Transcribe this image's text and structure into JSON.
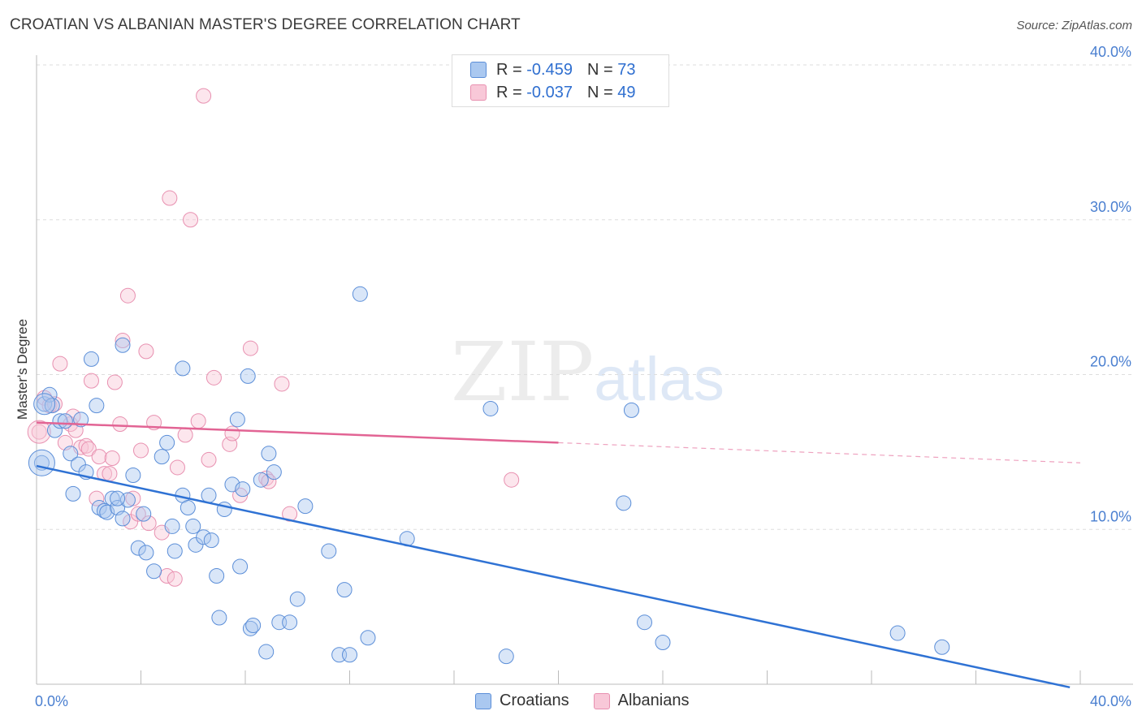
{
  "title": "CROATIAN VS ALBANIAN MASTER'S DEGREE CORRELATION CHART",
  "source": "Source: ZipAtlas.com",
  "watermark": {
    "zip": "ZIP",
    "atlas": "atlas"
  },
  "legend": {
    "rows": [
      {
        "r_label": "R = ",
        "r_value": "-0.459",
        "n_label": "N = ",
        "n_value": "73",
        "color": "#aac8f0",
        "border": "#5b8ed8"
      },
      {
        "r_label": "R = ",
        "r_value": "-0.037",
        "n_label": "N = ",
        "n_value": "49",
        "color": "#f8c8d8",
        "border": "#e890b0"
      }
    ]
  },
  "bottom_legend": [
    {
      "label": "Croatians",
      "color": "#aac8f0",
      "border": "#5b8ed8"
    },
    {
      "label": "Albanians",
      "color": "#f8c8d8",
      "border": "#e890b0"
    }
  ],
  "chart_data": {
    "type": "scatter",
    "title": "CROATIAN VS ALBANIAN MASTER'S DEGREE CORRELATION CHART",
    "xlabel": "",
    "ylabel": "Master's Degree",
    "xlim": [
      0,
      40
    ],
    "ylim": [
      0,
      40
    ],
    "x_tick_labels": [
      "0.0%",
      "40.0%"
    ],
    "y_ticks": [
      10,
      20,
      30,
      40
    ],
    "y_tick_labels": [
      "10.0%",
      "20.0%",
      "30.0%",
      "40.0%"
    ],
    "grid": true,
    "series": [
      {
        "name": "Croatians",
        "color": "#7aaae6",
        "line_color": "#2f72d4",
        "trend": {
          "x": [
            0,
            39.6
          ],
          "y": [
            14.1,
            -0.2
          ]
        },
        "points": [
          [
            0.2,
            14.3
          ],
          [
            0.3,
            18.1
          ],
          [
            0.5,
            18.7
          ],
          [
            0.6,
            18.0
          ],
          [
            0.7,
            16.4
          ],
          [
            0.9,
            17.0
          ],
          [
            1.1,
            17.0
          ],
          [
            1.3,
            14.9
          ],
          [
            1.4,
            12.3
          ],
          [
            1.6,
            14.2
          ],
          [
            1.7,
            17.1
          ],
          [
            1.9,
            13.7
          ],
          [
            2.1,
            21.0
          ],
          [
            2.3,
            18.0
          ],
          [
            2.4,
            11.4
          ],
          [
            2.6,
            11.2
          ],
          [
            2.7,
            11.1
          ],
          [
            2.9,
            12.0
          ],
          [
            3.1,
            11.4
          ],
          [
            3.3,
            10.7
          ],
          [
            3.5,
            11.9
          ],
          [
            3.7,
            13.5
          ],
          [
            3.9,
            8.8
          ],
          [
            4.1,
            11.0
          ],
          [
            4.2,
            8.5
          ],
          [
            4.5,
            7.3
          ],
          [
            4.8,
            14.7
          ],
          [
            5.0,
            15.6
          ],
          [
            5.2,
            10.2
          ],
          [
            5.3,
            8.6
          ],
          [
            5.6,
            12.2
          ],
          [
            5.8,
            11.4
          ],
          [
            6.0,
            10.2
          ],
          [
            6.1,
            9.0
          ],
          [
            6.4,
            9.5
          ],
          [
            6.6,
            12.2
          ],
          [
            6.7,
            9.3
          ],
          [
            6.9,
            7.0
          ],
          [
            7.0,
            4.3
          ],
          [
            7.2,
            11.3
          ],
          [
            7.5,
            12.9
          ],
          [
            7.7,
            17.1
          ],
          [
            7.8,
            7.6
          ],
          [
            7.9,
            12.6
          ],
          [
            8.1,
            19.9
          ],
          [
            8.2,
            3.6
          ],
          [
            8.3,
            3.8
          ],
          [
            8.6,
            13.2
          ],
          [
            8.8,
            2.1
          ],
          [
            8.9,
            14.9
          ],
          [
            9.1,
            13.7
          ],
          [
            9.3,
            4.0
          ],
          [
            9.7,
            4.0
          ],
          [
            10.0,
            5.5
          ],
          [
            10.3,
            11.5
          ],
          [
            11.2,
            8.6
          ],
          [
            11.6,
            1.9
          ],
          [
            11.8,
            6.1
          ],
          [
            12.0,
            1.9
          ],
          [
            12.4,
            25.2
          ],
          [
            12.7,
            3.0
          ],
          [
            3.3,
            21.9
          ],
          [
            5.6,
            20.4
          ],
          [
            14.2,
            9.4
          ],
          [
            17.4,
            17.8
          ],
          [
            18.0,
            1.8
          ],
          [
            22.5,
            11.7
          ],
          [
            22.8,
            17.7
          ],
          [
            23.3,
            4.0
          ],
          [
            24.0,
            2.7
          ],
          [
            33.0,
            3.3
          ],
          [
            34.7,
            2.4
          ],
          [
            3.1,
            12.0
          ]
        ]
      },
      {
        "name": "Albanians",
        "color": "#f4a6c2",
        "line_color": "#e26494",
        "trend": {
          "x": [
            0,
            20
          ],
          "y": [
            16.9,
            15.6
          ]
        },
        "trend_dashed": {
          "x": [
            20,
            40
          ],
          "y": [
            15.6,
            14.3
          ]
        },
        "points": [
          [
            0.1,
            16.3
          ],
          [
            0.3,
            18.5
          ],
          [
            0.5,
            18.0
          ],
          [
            0.7,
            18.1
          ],
          [
            0.9,
            20.7
          ],
          [
            1.1,
            15.6
          ],
          [
            1.3,
            16.8
          ],
          [
            1.4,
            17.3
          ],
          [
            1.5,
            16.4
          ],
          [
            1.7,
            15.3
          ],
          [
            1.9,
            15.4
          ],
          [
            2.0,
            15.2
          ],
          [
            2.1,
            19.6
          ],
          [
            2.3,
            12.0
          ],
          [
            2.4,
            14.7
          ],
          [
            2.6,
            13.6
          ],
          [
            2.8,
            13.6
          ],
          [
            2.9,
            14.6
          ],
          [
            3.0,
            19.5
          ],
          [
            3.2,
            16.8
          ],
          [
            3.3,
            22.2
          ],
          [
            3.5,
            25.1
          ],
          [
            3.6,
            10.5
          ],
          [
            3.7,
            12.0
          ],
          [
            3.9,
            11.0
          ],
          [
            4.0,
            15.1
          ],
          [
            4.2,
            21.5
          ],
          [
            4.3,
            10.4
          ],
          [
            4.5,
            16.9
          ],
          [
            4.8,
            9.8
          ],
          [
            5.0,
            7.0
          ],
          [
            5.1,
            31.4
          ],
          [
            5.3,
            6.8
          ],
          [
            5.4,
            14.0
          ],
          [
            5.7,
            16.1
          ],
          [
            5.9,
            30.0
          ],
          [
            6.2,
            17.0
          ],
          [
            6.4,
            38.0
          ],
          [
            6.6,
            14.5
          ],
          [
            6.8,
            19.8
          ],
          [
            7.4,
            15.5
          ],
          [
            7.5,
            16.2
          ],
          [
            7.8,
            12.2
          ],
          [
            8.2,
            21.7
          ],
          [
            8.8,
            13.3
          ],
          [
            8.9,
            13.1
          ],
          [
            9.4,
            19.4
          ],
          [
            9.7,
            11.0
          ],
          [
            18.2,
            13.2
          ]
        ]
      }
    ]
  }
}
